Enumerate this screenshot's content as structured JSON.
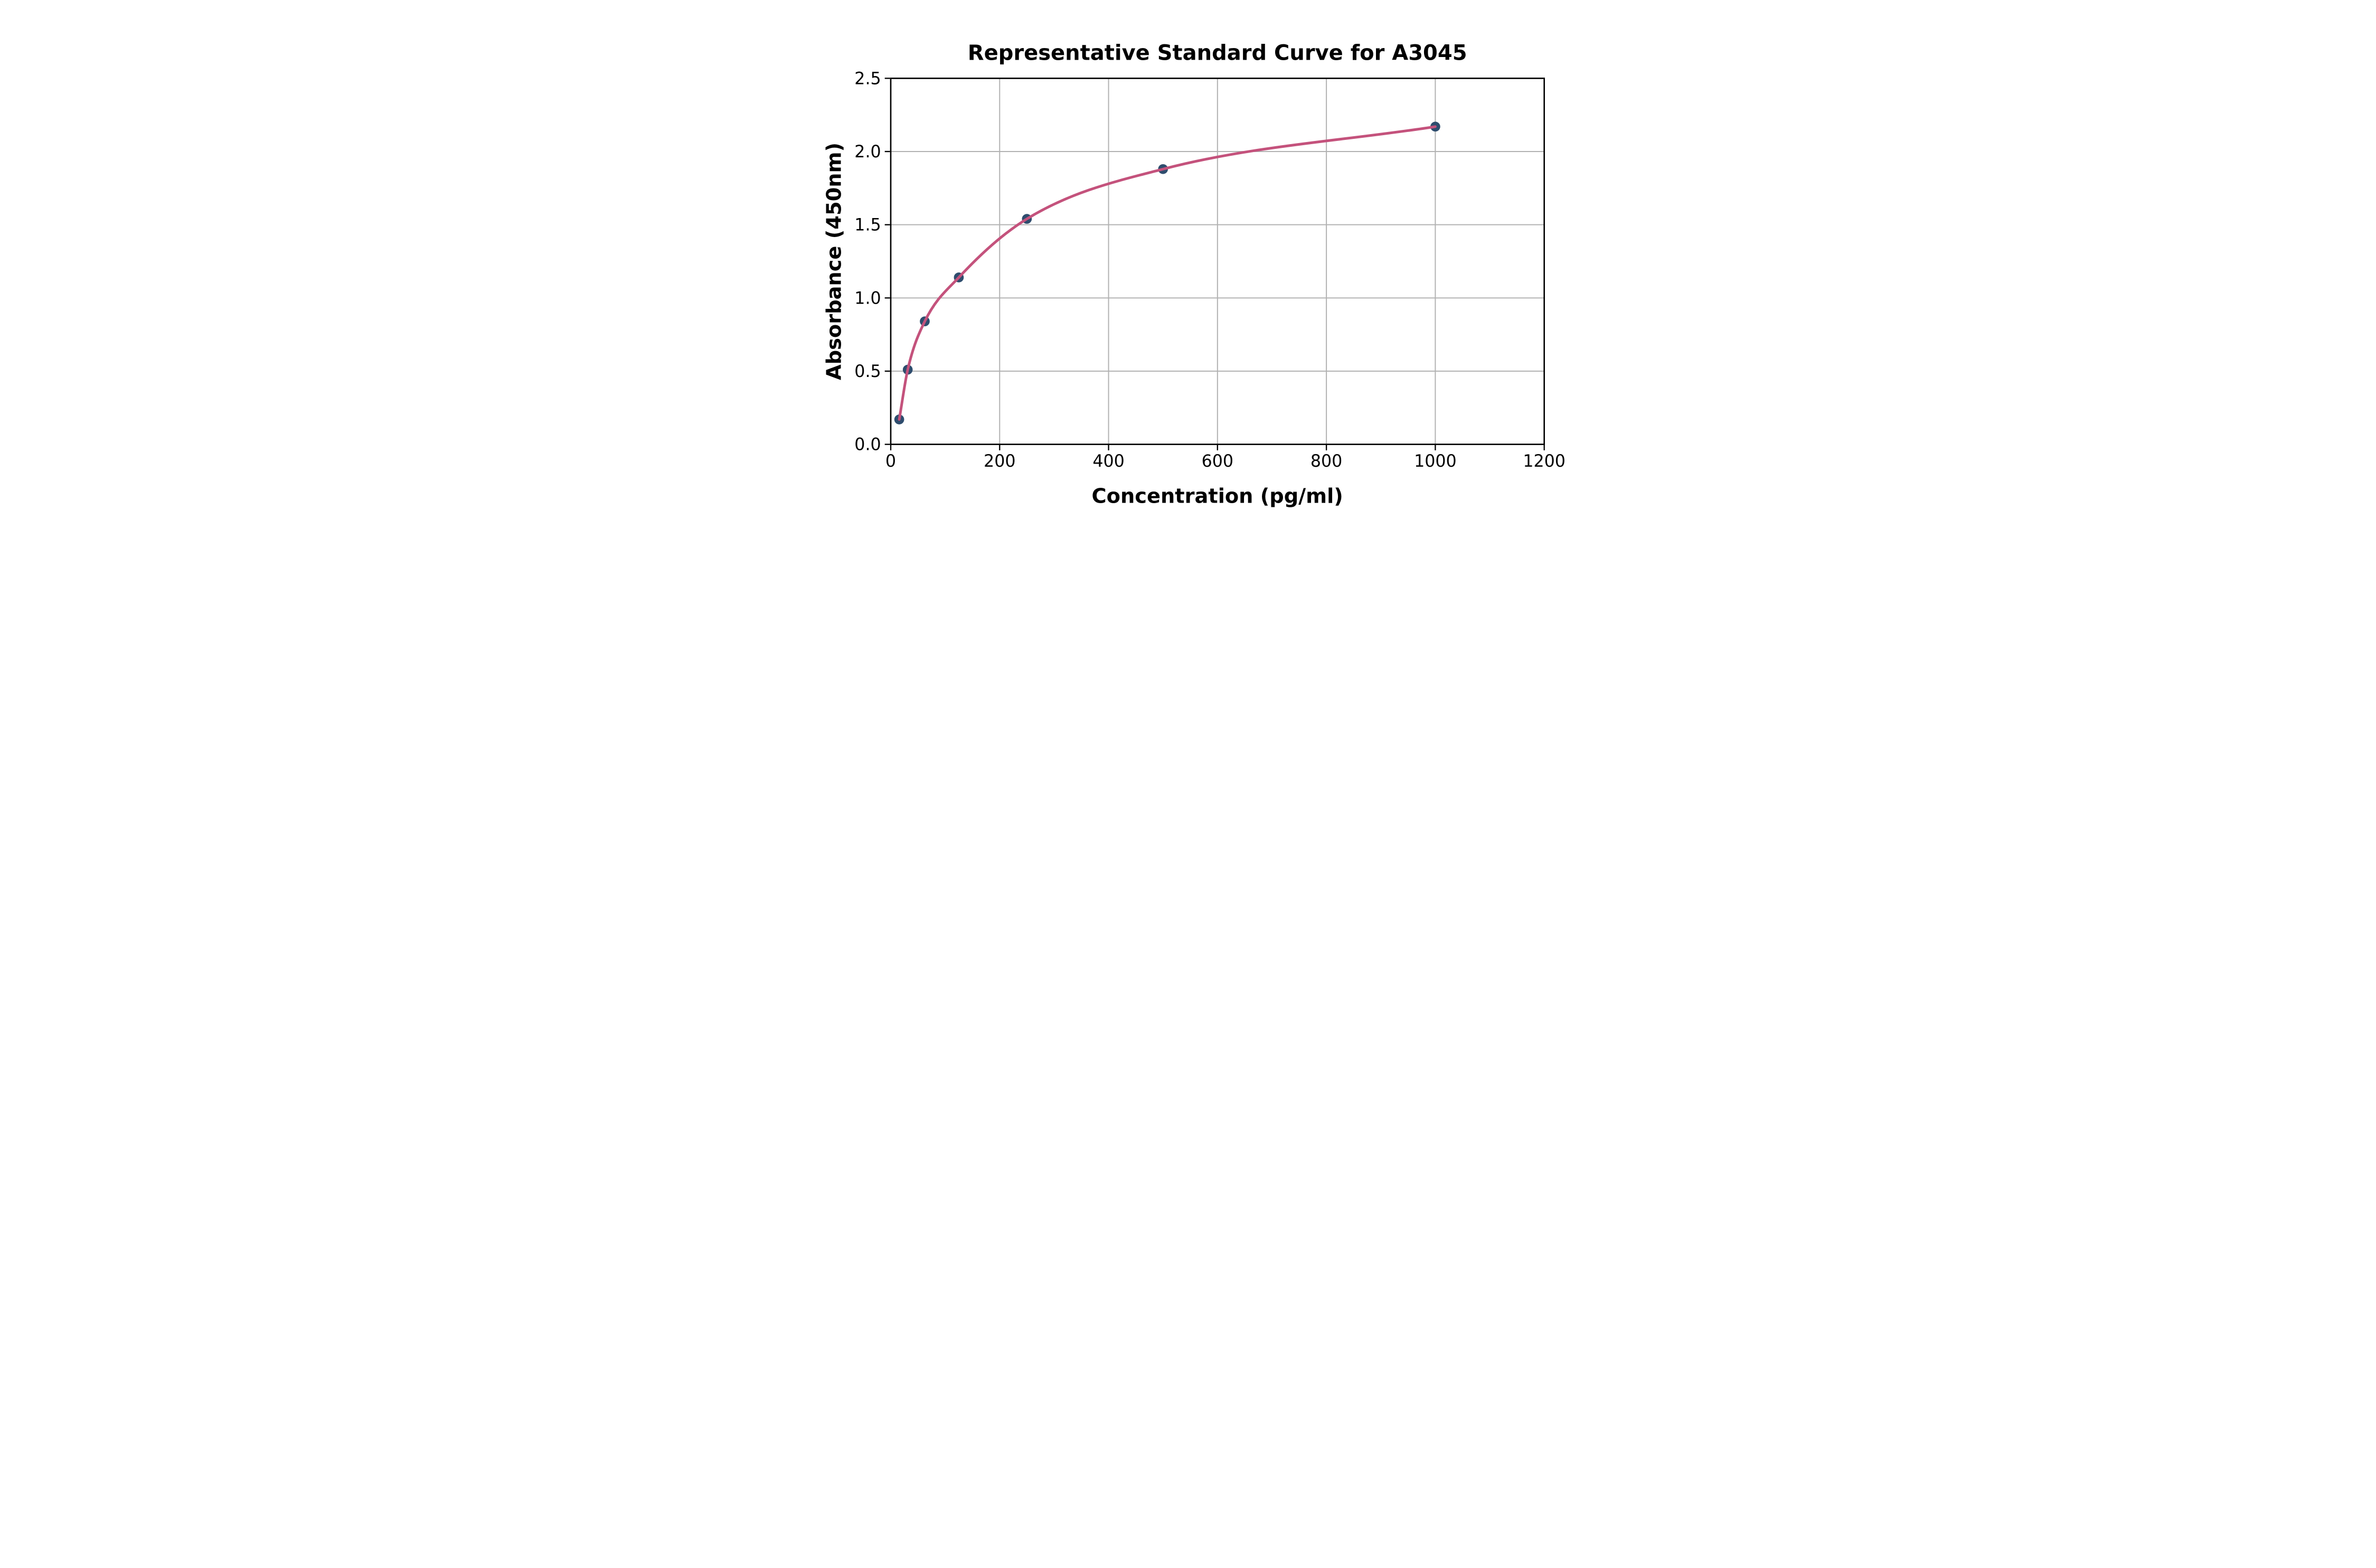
{
  "figure": {
    "background_color": "#ffffff"
  },
  "chart_data": {
    "type": "scatter",
    "title": "Representative Standard Curve for A3045",
    "xlabel": "Concentration (pg/ml)",
    "ylabel": "Absorbance (450nm)",
    "xlim": [
      0,
      1200
    ],
    "ylim": [
      0,
      2.5
    ],
    "x_ticks": [
      0,
      200,
      400,
      600,
      800,
      1000,
      1200
    ],
    "x_tick_labels": [
      "0",
      "200",
      "400",
      "600",
      "800",
      "1000",
      "1200"
    ],
    "y_ticks": [
      0,
      0.5,
      1.0,
      1.5,
      2.0,
      2.5
    ],
    "y_tick_labels": [
      "0.0",
      "0.5",
      "1.0",
      "1.5",
      "2.0",
      "2.5"
    ],
    "grid": true,
    "legend_position": "none",
    "series": [
      {
        "name": "standard-curve",
        "x": [
          15.6,
          31.2,
          62.5,
          125,
          250,
          500,
          1000
        ],
        "y": [
          0.17,
          0.51,
          0.84,
          1.14,
          1.54,
          1.88,
          2.17
        ],
        "marker": "circle",
        "marker_color": "#2e4d6e",
        "line_color": "#c4527c"
      }
    ],
    "colors": {
      "grid": "#b2b2b2",
      "spine": "#000000",
      "text": "#000000",
      "background": "#ffffff"
    }
  }
}
